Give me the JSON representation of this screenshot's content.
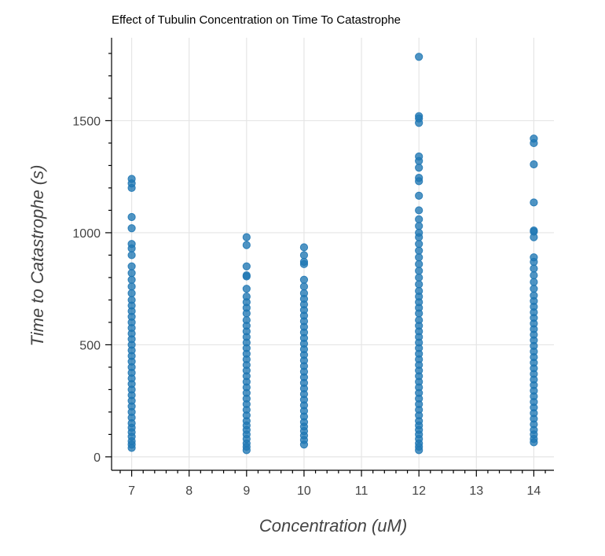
{
  "chart_data": {
    "type": "scatter",
    "title": "Effect of Tubulin Concentration on Time To Catastrophe",
    "xlabel": "Concentration (uM)",
    "ylabel": "Time to Catastrophe (s)",
    "xlim": [
      6.65,
      14.35
    ],
    "ylim": [
      -60,
      1870
    ],
    "xticks": [
      7,
      8,
      9,
      10,
      11,
      12,
      13,
      14
    ],
    "yticks": [
      0,
      500,
      1000,
      1500
    ],
    "grid": true,
    "point_color": "#1f77b4",
    "series": [
      {
        "x": 7,
        "y": [
          40,
          55,
          70,
          90,
          110,
          130,
          150,
          175,
          200,
          225,
          250,
          275,
          300,
          325,
          350,
          375,
          400,
          425,
          450,
          475,
          500,
          525,
          550,
          575,
          600,
          625,
          650,
          675,
          700,
          730,
          760,
          790,
          820,
          850,
          900,
          930,
          950,
          1020,
          1070,
          1200,
          1220,
          1240
        ]
      },
      {
        "x": 9,
        "y": [
          30,
          45,
          60,
          80,
          100,
          120,
          140,
          160,
          185,
          210,
          235,
          260,
          285,
          310,
          335,
          360,
          385,
          410,
          435,
          460,
          485,
          510,
          535,
          560,
          585,
          610,
          640,
          665,
          690,
          715,
          750,
          805,
          810,
          850,
          945,
          980
        ]
      },
      {
        "x": 10,
        "y": [
          55,
          75,
          95,
          115,
          135,
          155,
          180,
          205,
          230,
          255,
          280,
          305,
          330,
          355,
          380,
          405,
          430,
          455,
          480,
          505,
          530,
          555,
          580,
          605,
          630,
          655,
          680,
          705,
          730,
          760,
          790,
          860,
          870,
          900,
          935
        ]
      },
      {
        "x": 12,
        "y": [
          30,
          45,
          60,
          80,
          100,
          120,
          140,
          160,
          185,
          210,
          235,
          260,
          285,
          310,
          335,
          360,
          385,
          410,
          435,
          460,
          485,
          510,
          535,
          560,
          585,
          610,
          640,
          665,
          690,
          715,
          740,
          770,
          800,
          830,
          860,
          890,
          920,
          950,
          980,
          1000,
          1030,
          1060,
          1100,
          1165,
          1230,
          1245,
          1290,
          1320,
          1340,
          1490,
          1510,
          1520,
          1785
        ]
      },
      {
        "x": 14,
        "y": [
          65,
          80,
          100,
          120,
          145,
          170,
          195,
          220,
          245,
          270,
          295,
          320,
          345,
          370,
          395,
          420,
          445,
          470,
          495,
          520,
          545,
          570,
          595,
          620,
          645,
          670,
          695,
          720,
          750,
          780,
          810,
          840,
          870,
          890,
          980,
          1005,
          1010,
          1135,
          1305,
          1400,
          1420
        ]
      }
    ]
  }
}
